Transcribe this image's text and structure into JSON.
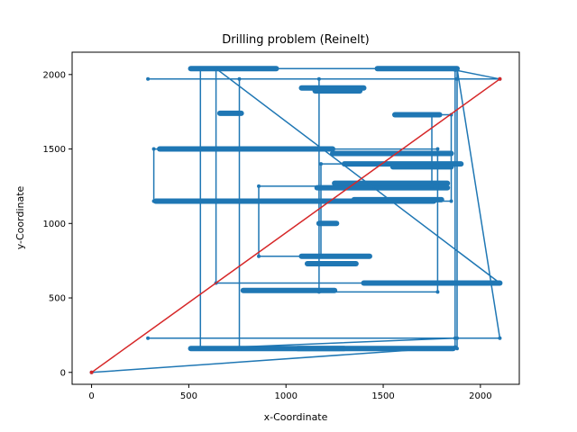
{
  "chart_data": {
    "type": "line",
    "title": "Drilling problem (Reinelt)",
    "xlabel": "x-Coordinate",
    "ylabel": "y-Coordinate",
    "xlim": [
      -100,
      2200
    ],
    "ylim": [
      -80,
      2150
    ],
    "xticks": [
      0,
      500,
      1000,
      1500,
      2000
    ],
    "yticks": [
      0,
      500,
      1000,
      1500,
      2000
    ],
    "grid": false,
    "series": [
      {
        "color": "#1f77b4",
        "marker": "circle",
        "x": [
          0,
          1870,
          1870,
          2100,
          290,
          760,
          760,
          1880,
          1880,
          2100,
          290,
          1880,
          1870,
          560,
          560,
          1880,
          1880,
          1170,
          1170,
          1780,
          1780,
          320,
          320,
          1850,
          1850,
          1750,
          1750,
          860,
          860,
          1180,
          1180,
          1870,
          1870,
          640,
          640,
          2100
        ],
        "y": [
          0,
          170,
          2030,
          1970,
          1970,
          1970,
          160,
          160,
          2040,
          230,
          230,
          230,
          230,
          160,
          2040,
          2040,
          1970,
          1970,
          540,
          540,
          1500,
          1500,
          1150,
          1150,
          1730,
          1730,
          1250,
          1250,
          780,
          780,
          1400,
          1400,
          600,
          600,
          2040,
          600
        ]
      },
      {
        "color": "#d62728",
        "marker": "circle",
        "x": [
          0,
          2100
        ],
        "y": [
          0,
          1970
        ]
      }
    ],
    "dense_clusters": [
      {
        "x0": 510,
        "x1": 950,
        "y": 2040
      },
      {
        "x0": 1470,
        "x1": 1880,
        "y": 2040
      },
      {
        "x0": 1080,
        "x1": 1400,
        "y": 1910
      },
      {
        "x0": 1150,
        "x1": 1380,
        "y": 1890
      },
      {
        "x0": 660,
        "x1": 770,
        "y": 1740
      },
      {
        "x0": 1560,
        "x1": 1790,
        "y": 1730
      },
      {
        "x0": 350,
        "x1": 1110,
        "y": 1500
      },
      {
        "x0": 1040,
        "x1": 1240,
        "y": 1500
      },
      {
        "x0": 1240,
        "x1": 1850,
        "y": 1470
      },
      {
        "x0": 1300,
        "x1": 1900,
        "y": 1400
      },
      {
        "x0": 1550,
        "x1": 1850,
        "y": 1380
      },
      {
        "x0": 1250,
        "x1": 1830,
        "y": 1270
      },
      {
        "x0": 1160,
        "x1": 1830,
        "y": 1240
      },
      {
        "x0": 1350,
        "x1": 1800,
        "y": 1160
      },
      {
        "x0": 330,
        "x1": 1760,
        "y": 1150
      },
      {
        "x0": 1170,
        "x1": 1260,
        "y": 1000
      },
      {
        "x0": 1080,
        "x1": 1430,
        "y": 780
      },
      {
        "x0": 1110,
        "x1": 1360,
        "y": 730
      },
      {
        "x0": 780,
        "x1": 1250,
        "y": 550
      },
      {
        "x0": 1400,
        "x1": 2100,
        "y": 600
      },
      {
        "x0": 510,
        "x1": 1300,
        "y": 160
      },
      {
        "x0": 1060,
        "x1": 1860,
        "y": 160
      }
    ]
  }
}
